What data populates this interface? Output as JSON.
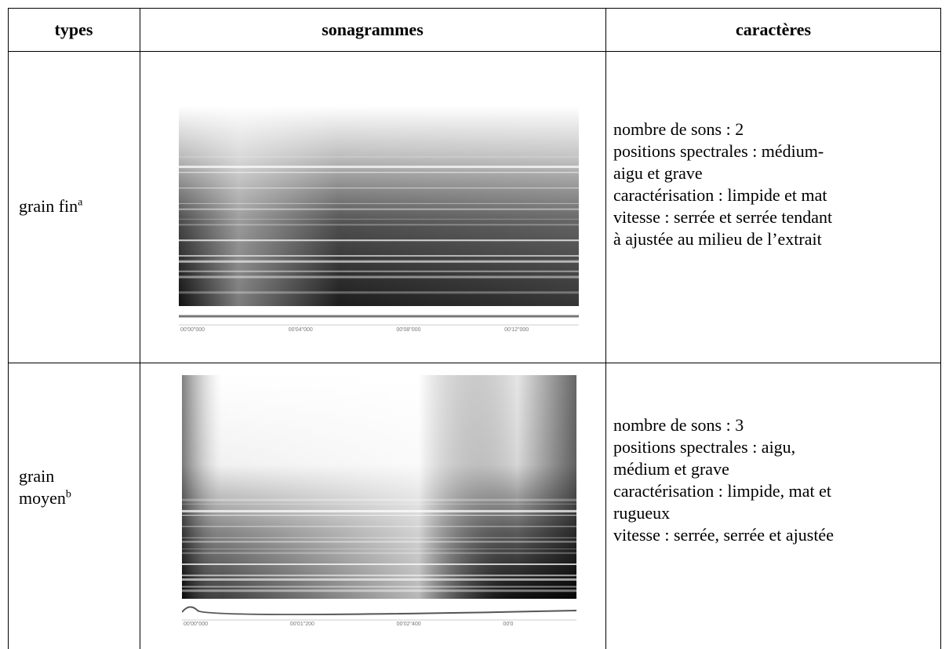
{
  "table": {
    "header": [
      "types",
      "sonagrammes",
      "caractères"
    ],
    "rows": [
      {
        "type": [
          "grain fin"
        ],
        "note": "a",
        "times": [
          "00'00\"000",
          "00'04\"000",
          "00'08\"000",
          "00'12\"000"
        ],
        "lines": [
          "nombre de sons : 2",
          "positions spectrales : médium-",
          "aigu et grave",
          "caractérisation : limpide et mat",
          "vitesse : serrée et serrée tendant",
          "à ajustée au milieu de l’extrait"
        ]
      },
      {
        "type": [
          "grain",
          "moyen"
        ],
        "note": "b",
        "times": [
          "00'00\"000",
          "00'01\"200",
          "00'02\"400",
          "00'0"
        ],
        "lines": [
          "nombre de sons : 3",
          "positions spectrales : aigu,",
          "médium et grave",
          "caractérisation : limpide, mat et",
          "rugueux",
          "vitesse : serrée, serrée et ajustée"
        ]
      }
    ]
  }
}
